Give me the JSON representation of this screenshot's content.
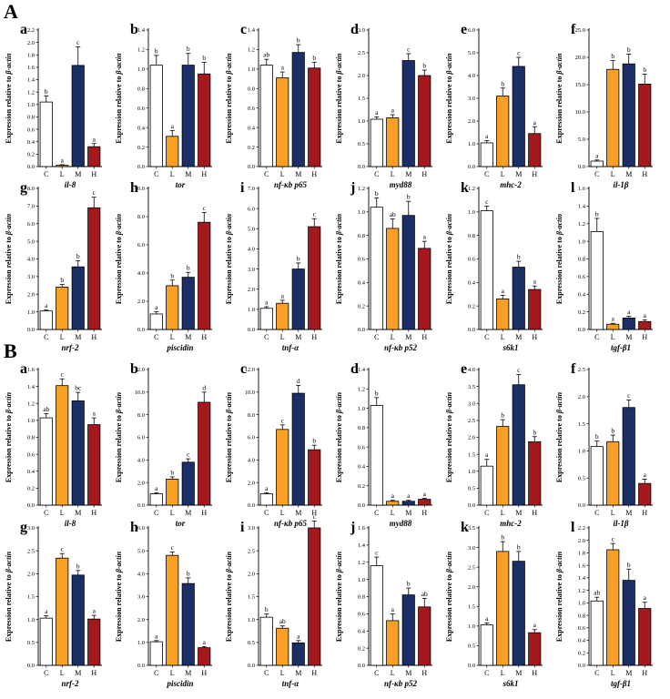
{
  "figure": {
    "section_labels": [
      "A",
      "B"
    ],
    "ylabel_prefix": "Expression relative to ",
    "ylabel_gene": "β-actin",
    "categories": [
      "C",
      "L",
      "M",
      "H"
    ],
    "colors": {
      "C": "#ffffff",
      "L": "#f7a025",
      "M": "#1b2f66",
      "H": "#a3191d",
      "stroke": "#000000"
    }
  },
  "chart_data": [
    {
      "section": "A",
      "panel": "a",
      "type": "bar",
      "gene": "il-8",
      "categories": [
        "C",
        "L",
        "M",
        "H"
      ],
      "values": [
        1.04,
        0.02,
        1.63,
        0.32
      ],
      "errors": [
        0.1,
        0.01,
        0.3,
        0.05
      ],
      "letters": [
        "b",
        "a",
        "c",
        "a"
      ],
      "ylim": [
        0,
        2.2
      ],
      "ticks": [
        "0.0",
        "0.2",
        "0.4",
        "0.6",
        "0.8",
        "1.0",
        "1.2",
        "1.4",
        "1.6",
        "1.8",
        "2.0",
        "2.2"
      ]
    },
    {
      "section": "A",
      "panel": "b",
      "type": "bar",
      "gene": "tor",
      "categories": [
        "C",
        "L",
        "M",
        "H"
      ],
      "values": [
        1.04,
        0.31,
        1.04,
        0.95
      ],
      "errors": [
        0.1,
        0.06,
        0.12,
        0.12
      ],
      "letters": [
        "b",
        "a",
        "b",
        "b"
      ],
      "ylim": [
        0,
        1.4
      ],
      "ticks": [
        "0.0",
        "0.2",
        "0.4",
        "0.6",
        "0.8",
        "1.0",
        "1.2",
        "1.4"
      ]
    },
    {
      "section": "A",
      "panel": "c",
      "type": "bar",
      "gene": "nf-κb p65",
      "categories": [
        "C",
        "L",
        "M",
        "H"
      ],
      "values": [
        1.04,
        0.91,
        1.17,
        1.01
      ],
      "errors": [
        0.06,
        0.06,
        0.08,
        0.06
      ],
      "letters": [
        "ab",
        "a",
        "b",
        "b"
      ],
      "ylim": [
        0,
        1.4
      ],
      "ticks": [
        "0.0",
        "0.2",
        "0.4",
        "0.6",
        "0.8",
        "1.0",
        "1.2",
        "1.4"
      ]
    },
    {
      "section": "A",
      "panel": "d",
      "type": "bar",
      "gene": "myd88",
      "categories": [
        "C",
        "L",
        "M",
        "H"
      ],
      "values": [
        1.04,
        1.07,
        2.33,
        2.0
      ],
      "errors": [
        0.05,
        0.07,
        0.15,
        0.12
      ],
      "letters": [
        "a",
        "a",
        "c",
        "b"
      ],
      "ylim": [
        0,
        3.0
      ],
      "ticks": [
        "0.0",
        "0.5",
        "1.0",
        "1.5",
        "2.0",
        "2.5",
        "3.0"
      ]
    },
    {
      "section": "A",
      "panel": "e",
      "type": "bar",
      "gene": "mhc-2",
      "categories": [
        "C",
        "L",
        "M",
        "H"
      ],
      "values": [
        1.04,
        3.1,
        4.4,
        1.45
      ],
      "errors": [
        0.1,
        0.35,
        0.4,
        0.3
      ],
      "letters": [
        "a",
        "b",
        "c",
        "a"
      ],
      "ylim": [
        0,
        6.0
      ],
      "ticks": [
        "0.0",
        "1.0",
        "2.0",
        "3.0",
        "4.0",
        "5.0",
        "6.0"
      ]
    },
    {
      "section": "A",
      "panel": "f",
      "type": "bar",
      "gene": "il-1β",
      "categories": [
        "C",
        "L",
        "M",
        "H"
      ],
      "values": [
        1.0,
        17.8,
        18.8,
        15.1
      ],
      "errors": [
        0.2,
        1.6,
        1.8,
        1.8
      ],
      "letters": [
        "a",
        "b",
        "b",
        "b"
      ],
      "ylim": [
        0,
        25.0
      ],
      "ticks": [
        "0.0",
        "5.0",
        "10.0",
        "15.0",
        "20.0",
        "25.0"
      ]
    },
    {
      "section": "A",
      "panel": "g",
      "type": "bar",
      "gene": "nrf-2",
      "categories": [
        "C",
        "L",
        "M",
        "H"
      ],
      "values": [
        1.05,
        2.4,
        3.55,
        6.9
      ],
      "errors": [
        0.05,
        0.15,
        0.35,
        0.6
      ],
      "letters": [
        "a",
        "b",
        "b",
        "c"
      ],
      "ylim": [
        0,
        8.0
      ],
      "ticks": [
        "0.0",
        "1.0",
        "2.0",
        "3.0",
        "4.0",
        "5.0",
        "6.0",
        "7.0",
        "8.0"
      ]
    },
    {
      "section": "A",
      "panel": "h",
      "type": "bar",
      "gene": "piscidin",
      "categories": [
        "C",
        "L",
        "M",
        "H"
      ],
      "values": [
        1.1,
        3.1,
        3.7,
        7.6
      ],
      "errors": [
        0.15,
        0.4,
        0.35,
        0.7
      ],
      "letters": [
        "a",
        "b",
        "b",
        "c"
      ],
      "ylim": [
        0,
        10.0
      ],
      "ticks": [
        "0.0",
        "2.0",
        "4.0",
        "6.0",
        "8.0",
        "10.0"
      ]
    },
    {
      "section": "A",
      "panel": "i",
      "type": "bar",
      "gene": "tnf-α",
      "categories": [
        "C",
        "L",
        "M",
        "H"
      ],
      "values": [
        1.05,
        1.3,
        3.0,
        5.1
      ],
      "errors": [
        0.08,
        0.15,
        0.3,
        0.4
      ],
      "letters": [
        "a",
        "a",
        "b",
        "c"
      ],
      "ylim": [
        0,
        7.0
      ],
      "ticks": [
        "0.0",
        "1.0",
        "2.0",
        "3.0",
        "4.0",
        "5.0",
        "6.0",
        "7.0"
      ]
    },
    {
      "section": "A",
      "panel": "j",
      "type": "bar",
      "gene": "nf-κb p52",
      "categories": [
        "C",
        "L",
        "M",
        "H"
      ],
      "values": [
        1.04,
        0.86,
        0.97,
        0.69
      ],
      "errors": [
        0.08,
        0.08,
        0.12,
        0.06
      ],
      "letters": [
        "b",
        "ab",
        "b",
        "a"
      ],
      "ylim": [
        0,
        1.2
      ],
      "ticks": [
        "0.0",
        "0.2",
        "0.4",
        "0.6",
        "0.8",
        "1.0",
        "1.2"
      ]
    },
    {
      "section": "A",
      "panel": "k",
      "type": "bar",
      "gene": "s6k1",
      "categories": [
        "C",
        "L",
        "M",
        "H"
      ],
      "values": [
        1.01,
        0.26,
        0.53,
        0.34
      ],
      "errors": [
        0.04,
        0.03,
        0.05,
        0.03
      ],
      "letters": [
        "c",
        "a",
        "b",
        "a"
      ],
      "ylim": [
        0,
        1.2
      ],
      "ticks": [
        "0.0",
        "0.2",
        "0.4",
        "0.6",
        "0.8",
        "1.0",
        "1.2"
      ]
    },
    {
      "section": "A",
      "panel": "l",
      "type": "bar",
      "gene": "tgf-β1",
      "categories": [
        "C",
        "L",
        "M",
        "H"
      ],
      "values": [
        1.11,
        0.06,
        0.13,
        0.09
      ],
      "errors": [
        0.15,
        0.01,
        0.02,
        0.02
      ],
      "letters": [
        "b",
        "a",
        "a",
        "a"
      ],
      "ylim": [
        0,
        1.6
      ],
      "ticks": [
        "0.0",
        "0.2",
        "0.4",
        "0.6",
        "0.8",
        "1.0",
        "1.2",
        "1.4",
        "1.6"
      ]
    },
    {
      "section": "B",
      "panel": "a",
      "type": "bar",
      "gene": "il-8",
      "categories": [
        "C",
        "L",
        "M",
        "H"
      ],
      "values": [
        1.03,
        1.41,
        1.23,
        0.95
      ],
      "errors": [
        0.05,
        0.08,
        0.1,
        0.08
      ],
      "letters": [
        "ab",
        "c",
        "bc",
        "a"
      ],
      "ylim": [
        0,
        1.6
      ],
      "ticks": [
        "0.0",
        "0.2",
        "0.4",
        "0.6",
        "0.8",
        "1.0",
        "1.2",
        "1.4",
        "1.6"
      ]
    },
    {
      "section": "B",
      "panel": "b",
      "type": "bar",
      "gene": "tor",
      "categories": [
        "C",
        "L",
        "M",
        "H"
      ],
      "values": [
        1.0,
        2.3,
        3.8,
        9.1
      ],
      "errors": [
        0.1,
        0.2,
        0.3,
        0.9
      ],
      "letters": [
        "a",
        "b",
        "c",
        "d"
      ],
      "ylim": [
        0,
        12.0
      ],
      "ticks": [
        "0.0",
        "2.0",
        "4.0",
        "6.0",
        "8.0",
        "10.0",
        "12.0"
      ]
    },
    {
      "section": "B",
      "panel": "c",
      "type": "bar",
      "gene": "nf-κb p65",
      "categories": [
        "C",
        "L",
        "M",
        "H"
      ],
      "values": [
        1.0,
        6.7,
        9.9,
        4.9
      ],
      "errors": [
        0.1,
        0.4,
        0.7,
        0.4
      ],
      "letters": [
        "a",
        "c",
        "d",
        "b"
      ],
      "ylim": [
        0,
        12.0
      ],
      "ticks": [
        "0.0",
        "2.0",
        "4.0",
        "6.0",
        "8.0",
        "10.0",
        "12.0"
      ]
    },
    {
      "section": "B",
      "panel": "d",
      "type": "bar",
      "gene": "myd88",
      "categories": [
        "C",
        "L",
        "M",
        "H"
      ],
      "values": [
        1.03,
        0.04,
        0.04,
        0.06
      ],
      "errors": [
        0.08,
        0.01,
        0.01,
        0.01
      ],
      "letters": [
        "b",
        "a",
        "a",
        "a"
      ],
      "ylim": [
        0,
        1.4
      ],
      "ticks": [
        "0.0",
        "0.2",
        "0.4",
        "0.6",
        "0.8",
        "1.0",
        "1.2",
        "1.4"
      ]
    },
    {
      "section": "B",
      "panel": "e",
      "type": "bar",
      "gene": "mhc-2",
      "categories": [
        "C",
        "L",
        "M",
        "H"
      ],
      "values": [
        1.15,
        2.32,
        3.55,
        1.87
      ],
      "errors": [
        0.2,
        0.2,
        0.3,
        0.15
      ],
      "letters": [
        "a",
        "b",
        "c",
        "b"
      ],
      "ylim": [
        0,
        4.0
      ],
      "ticks": [
        "0.0",
        "0.5",
        "1.0",
        "1.5",
        "2.0",
        "2.5",
        "3.0",
        "3.5",
        "4.0"
      ]
    },
    {
      "section": "B",
      "panel": "f",
      "type": "bar",
      "gene": "il-1β",
      "categories": [
        "C",
        "L",
        "M",
        "H"
      ],
      "values": [
        1.08,
        1.17,
        1.8,
        0.4
      ],
      "errors": [
        0.1,
        0.12,
        0.14,
        0.08
      ],
      "letters": [
        "b",
        "b",
        "c",
        "a"
      ],
      "ylim": [
        0,
        2.5
      ],
      "ticks": [
        "0.0",
        "0.5",
        "1.0",
        "1.5",
        "2.0",
        "2.5"
      ]
    },
    {
      "section": "B",
      "panel": "g",
      "type": "bar",
      "gene": "nrf-2",
      "categories": [
        "C",
        "L",
        "M",
        "H"
      ],
      "values": [
        1.03,
        2.34,
        1.97,
        1.01
      ],
      "errors": [
        0.05,
        0.1,
        0.1,
        0.08
      ],
      "letters": [
        "a",
        "c",
        "b",
        "a"
      ],
      "ylim": [
        0,
        3.0
      ],
      "ticks": [
        "0.0",
        "0.5",
        "1.0",
        "1.5",
        "2.0",
        "2.5",
        "3.0"
      ]
    },
    {
      "section": "B",
      "panel": "h",
      "type": "bar",
      "gene": "piscidin",
      "categories": [
        "C",
        "L",
        "M",
        "H"
      ],
      "values": [
        1.03,
        4.8,
        3.57,
        0.77
      ],
      "errors": [
        0.05,
        0.15,
        0.25,
        0.05
      ],
      "letters": [
        "a",
        "c",
        "b",
        "a"
      ],
      "ylim": [
        0,
        6.0
      ],
      "ticks": [
        "0.0",
        "1.0",
        "2.0",
        "3.0",
        "4.0",
        "5.0",
        "6.0"
      ]
    },
    {
      "section": "B",
      "panel": "i",
      "type": "bar",
      "gene": "tnf-α",
      "categories": [
        "C",
        "L",
        "M",
        "H"
      ],
      "values": [
        1.05,
        0.81,
        0.49,
        3.0
      ],
      "errors": [
        0.07,
        0.05,
        0.05,
        0.15
      ],
      "letters": [
        "b",
        "ab",
        "a",
        "c"
      ],
      "ylim": [
        0,
        3.0
      ],
      "ticks": [
        "0.0",
        "0.5",
        "1.0",
        "1.5",
        "2.0",
        "2.5",
        "3.0"
      ]
    },
    {
      "section": "B",
      "panel": "j",
      "type": "bar",
      "gene": "nf-κb p52",
      "categories": [
        "C",
        "L",
        "M",
        "H"
      ],
      "values": [
        1.16,
        0.52,
        0.82,
        0.68
      ],
      "errors": [
        0.1,
        0.08,
        0.08,
        0.1
      ],
      "letters": [
        "c",
        "a",
        "b",
        "ab"
      ],
      "ylim": [
        0,
        1.6
      ],
      "ticks": [
        "0.0",
        "0.2",
        "0.4",
        "0.6",
        "0.8",
        "1.0",
        "1.2",
        "1.4",
        "1.6"
      ]
    },
    {
      "section": "B",
      "panel": "k",
      "type": "bar",
      "gene": "s6k1",
      "categories": [
        "C",
        "L",
        "M",
        "H"
      ],
      "values": [
        1.03,
        2.9,
        2.65,
        0.83
      ],
      "errors": [
        0.05,
        0.25,
        0.25,
        0.08
      ],
      "letters": [
        "a",
        "b",
        "b",
        "a"
      ],
      "ylim": [
        0,
        3.5
      ],
      "ticks": [
        "0.0",
        "0.5",
        "1.0",
        "1.5",
        "2.0",
        "2.5",
        "3.0",
        "3.5"
      ]
    },
    {
      "section": "B",
      "panel": "l",
      "type": "bar",
      "gene": "tgf-β1",
      "categories": [
        "C",
        "L",
        "M",
        "H"
      ],
      "values": [
        1.03,
        1.85,
        1.36,
        0.91
      ],
      "errors": [
        0.06,
        0.1,
        0.18,
        0.1
      ],
      "letters": [
        "ab",
        "c",
        "b",
        "a"
      ],
      "ylim": [
        0,
        2.2
      ],
      "ticks": [
        "0.0",
        "0.2",
        "0.4",
        "0.6",
        "0.8",
        "1.0",
        "1.2",
        "1.4",
        "1.6",
        "1.8",
        "2.0",
        "2.2"
      ]
    }
  ]
}
